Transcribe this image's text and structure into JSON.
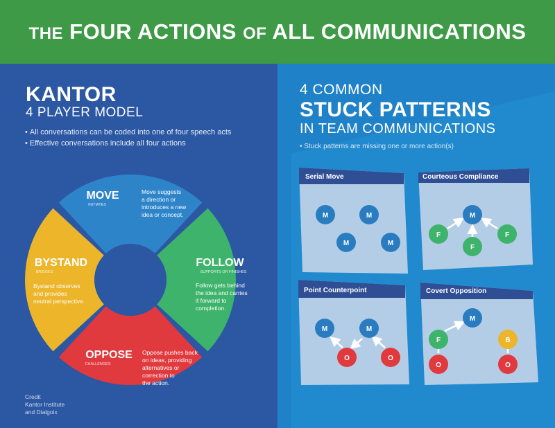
{
  "header": {
    "title_pre": "THE",
    "title_main": "FOUR ACTIONS",
    "title_of": "OF",
    "title_end": "ALL COMMUNICATIONS"
  },
  "kantor": {
    "title": "KANTOR",
    "subtitle": "4 PLAYER MODEL",
    "bullets": [
      "All conversations can be coded into one of four speech acts",
      "Effective conversations include all four actions"
    ],
    "credit": "Credit\nKantor Institute\nand Dialgoix"
  },
  "wheel": {
    "move": {
      "name": "MOVE",
      "sub": "INITIATES",
      "desc": [
        "Move suggests",
        "a direction or",
        "introduces a new",
        "idea or concept."
      ],
      "color": "#2e84c9"
    },
    "follow": {
      "name": "FOLLOW",
      "sub": "SUPPORTS OR FINISHES",
      "desc": [
        "Follow gets behind",
        "the idea and carries",
        "it forward to",
        "completion."
      ],
      "color": "#3db36b"
    },
    "oppose": {
      "name": "OPPOSE",
      "sub": "CHALLENGES",
      "desc": [
        "Oppose pushes back",
        "on ideas, providing",
        "alternatives or",
        "correction to",
        "the action."
      ],
      "color": "#e0393e"
    },
    "bystand": {
      "name": "BYSTAND",
      "sub": "BRIDGES",
      "desc": [
        "Bystand observes",
        "and provides",
        "neutral perspective."
      ],
      "color": "#ecb52a"
    }
  },
  "stuck": {
    "line1": "4 COMMON",
    "line2": "STUCK PATTERNS",
    "line3": "IN TEAM COMMUNICATIONS",
    "bullet": "Stuck patterns are missing one or more action(s)",
    "patterns": [
      {
        "title": "Serial Move"
      },
      {
        "title": "Courteous Compliance"
      },
      {
        "title": "Point Counterpoint"
      },
      {
        "title": "Covert Opposition"
      }
    ],
    "node_labels": {
      "move": "M",
      "follow": "F",
      "oppose": "O",
      "bystand": "B"
    }
  },
  "colors": {
    "banner": "#3f9a48",
    "left_bg": "#2c57a3",
    "right_bg": "#1f82c8",
    "card": "#b4cde6",
    "card_header": "#2f4e94"
  }
}
